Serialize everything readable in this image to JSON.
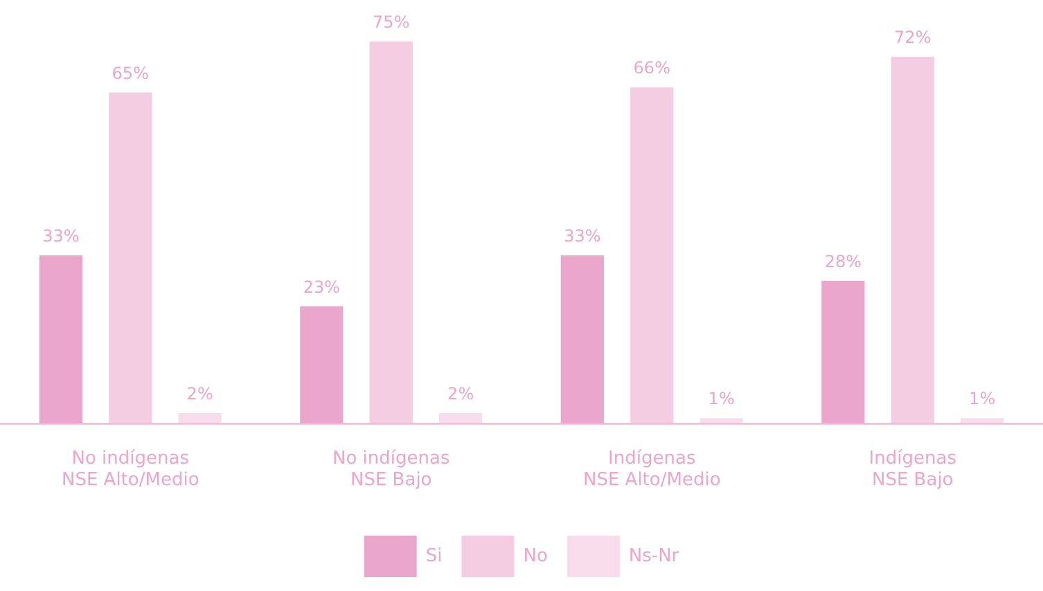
{
  "chart_data": {
    "type": "bar",
    "categories": [
      "No indígenas\nNSE Alto/Medio",
      "No indígenas\nNSE Bajo",
      "Indígenas\nNSE Alto/Medio",
      "Indígenas\nNSE Bajo"
    ],
    "series": [
      {
        "name": "Si",
        "color": "#eaa6cb",
        "values": [
          33,
          23,
          33,
          28
        ],
        "value_labels": [
          "33%",
          "23%",
          "33%",
          "28%"
        ]
      },
      {
        "name": "No",
        "color": "#f4cde2",
        "values": [
          65,
          75,
          66,
          72
        ],
        "value_labels": [
          "65%",
          "75%",
          "66%",
          "72%"
        ]
      },
      {
        "name": "Ns-Nr",
        "color": "#f7dceb",
        "values": [
          2,
          2,
          1,
          1
        ],
        "value_labels": [
          "2%",
          "2%",
          "1%",
          "1%"
        ]
      }
    ],
    "legend": "bottom",
    "grid": false
  }
}
